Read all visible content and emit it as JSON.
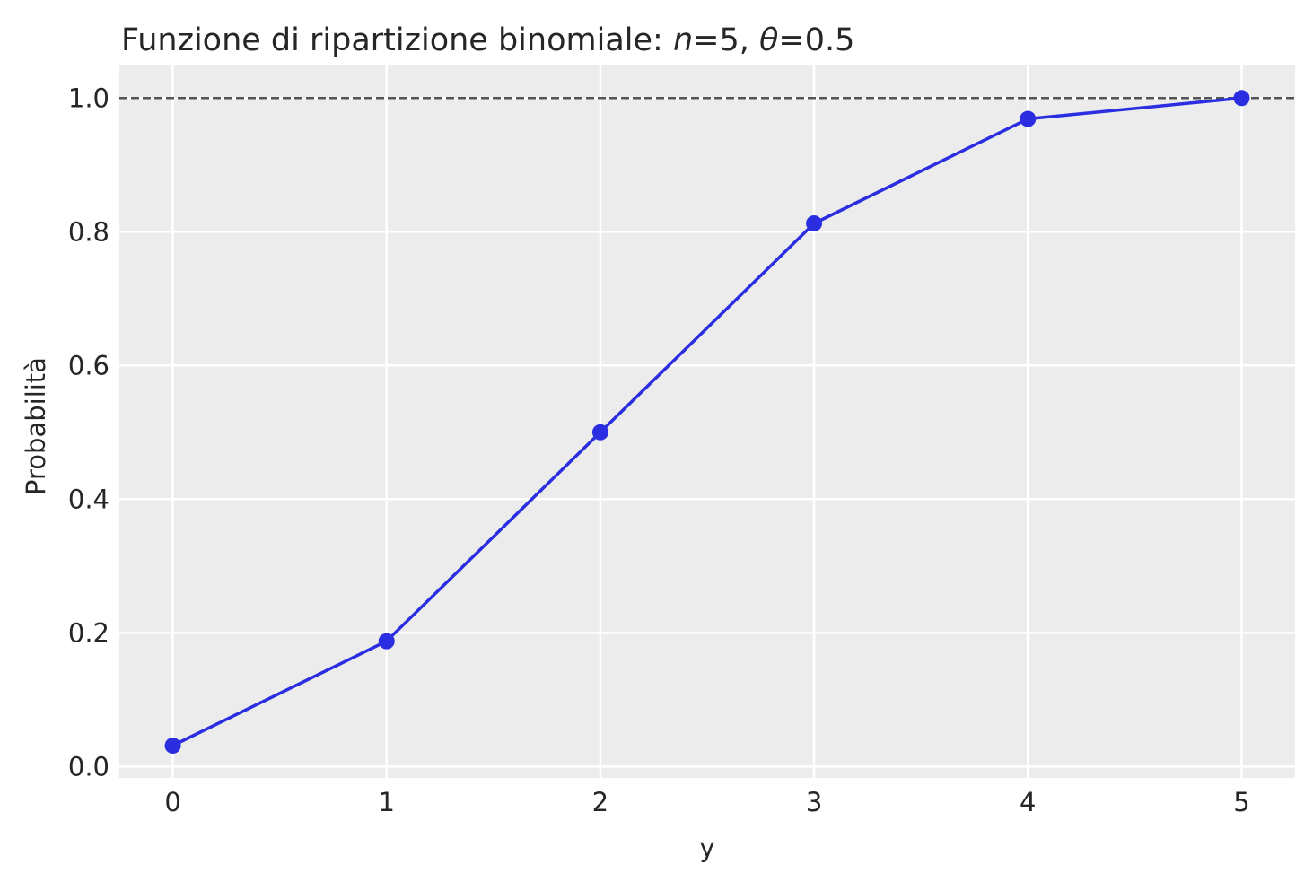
{
  "chart_data": {
    "type": "line",
    "title_parts": [
      {
        "text": "Funzione di ripartizione binomiale: ",
        "italic": false
      },
      {
        "text": "n",
        "italic": true
      },
      {
        "text": "=5, ",
        "italic": false
      },
      {
        "text": "θ",
        "italic": true
      },
      {
        "text": "=0.5",
        "italic": false
      }
    ],
    "xlabel": "y",
    "ylabel": "Probabilità",
    "x": [
      0,
      1,
      2,
      3,
      4,
      5
    ],
    "y": [
      0.03125,
      0.1875,
      0.5,
      0.8125,
      0.96875,
      1.0
    ],
    "xticks": [
      0,
      1,
      2,
      3,
      4,
      5
    ],
    "xtick_labels": [
      "0",
      "1",
      "2",
      "3",
      "4",
      "5"
    ],
    "yticks": [
      0.0,
      0.2,
      0.4,
      0.6,
      0.8,
      1.0
    ],
    "ytick_labels": [
      "0.0",
      "0.2",
      "0.4",
      "0.6",
      "0.8",
      "1.0"
    ],
    "xlim": [
      -0.25,
      5.25
    ],
    "ylim": [
      -0.017,
      1.05
    ],
    "reference_line": {
      "y": 1.0,
      "style": "dashed",
      "color": "#555555"
    },
    "grid": true,
    "colors": {
      "series": "#2a2ee0",
      "background": "#ececec",
      "grid": "#ffffff"
    }
  }
}
